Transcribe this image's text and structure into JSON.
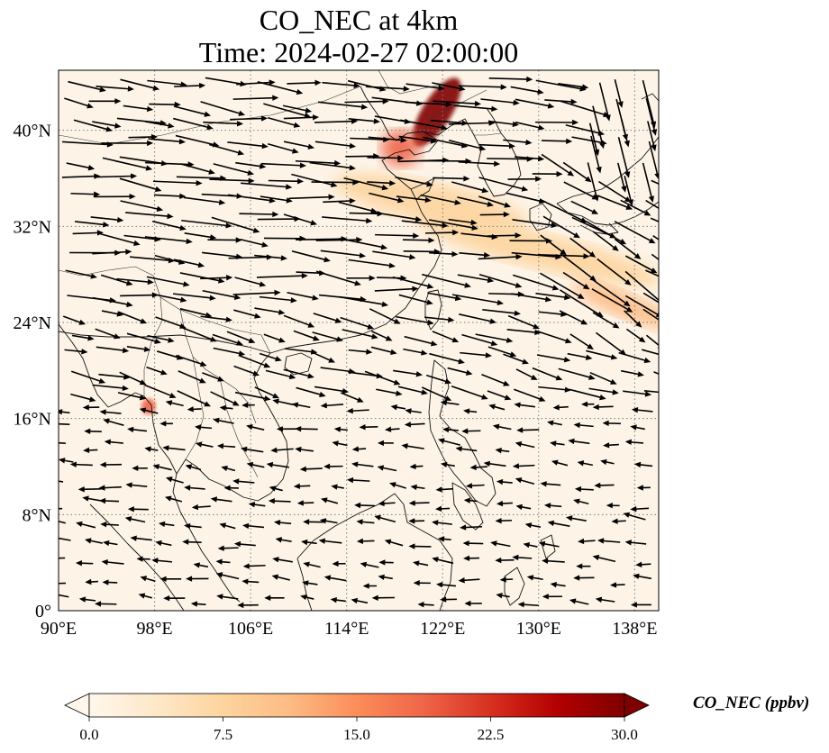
{
  "title": {
    "line1": "CO_NEC at 4km",
    "line2": "Time: 2024-02-27 02:00:00"
  },
  "map": {
    "projection": "PlateCarree",
    "lon_range": [
      90,
      140
    ],
    "lat_range": [
      0,
      45
    ],
    "x_ticks": [
      {
        "lon": 90,
        "label": "90°E"
      },
      {
        "lon": 98,
        "label": "98°E"
      },
      {
        "lon": 106,
        "label": "106°E"
      },
      {
        "lon": 114,
        "label": "114°E"
      },
      {
        "lon": 122,
        "label": "122°E"
      },
      {
        "lon": 130,
        "label": "130°E"
      },
      {
        "lon": 138,
        "label": "138°E"
      }
    ],
    "y_ticks": [
      {
        "lat": 0,
        "label": "0°"
      },
      {
        "lat": 8,
        "label": "8°N"
      },
      {
        "lat": 16,
        "label": "16°N"
      },
      {
        "lat": 24,
        "label": "24°N"
      },
      {
        "lat": 32,
        "label": "32°N"
      },
      {
        "lat": 40,
        "label": "40°N"
      }
    ],
    "gridlines": "dotted",
    "field_background": "#fdf4e7",
    "plumes": [
      {
        "name": "north-china-plume",
        "lon": 121.5,
        "lat": 41.5,
        "level": 30
      },
      {
        "name": "bohai-plume",
        "lon": 118.5,
        "lat": 38.5,
        "level": 18
      },
      {
        "name": "east-china-band",
        "lon": 121,
        "lat": 34,
        "level": 8
      },
      {
        "name": "east-china-sea-band",
        "lon": 130,
        "lat": 30,
        "level": 7
      },
      {
        "name": "japan-south-band",
        "lon": 137,
        "lat": 25.5,
        "level": 12
      },
      {
        "name": "myanmar-hotspot",
        "lon": 97.5,
        "lat": 17,
        "level": 17
      }
    ],
    "wind_regions": [
      {
        "name": "north-westerlies",
        "lat_min": 26,
        "lat_max": 45,
        "lon_min": 90,
        "lon_max": 140,
        "u": 1.0,
        "v": -0.12,
        "strength": 1.0
      },
      {
        "name": "subtropical-westerlies",
        "lat_min": 18,
        "lat_max": 26,
        "lon_min": 90,
        "lon_max": 140,
        "u": 1.0,
        "v": -0.25,
        "strength": 0.75
      },
      {
        "name": "tropical-easterlies",
        "lat_min": 0,
        "lat_max": 18,
        "lon_min": 90,
        "lon_max": 140,
        "u": -1.0,
        "v": 0.1,
        "strength": 0.45
      }
    ]
  },
  "colorbar": {
    "min": 0.0,
    "max": 30.0,
    "ticks": [
      "0.0",
      "7.5",
      "15.0",
      "22.5",
      "30.0"
    ],
    "label": "CO_NEC (ppbv)",
    "colors": [
      "#fff7ec",
      "#fee8c8",
      "#fdd49e",
      "#fdbb84",
      "#fc8d59",
      "#ef6548",
      "#d7301f",
      "#b30000",
      "#7f0000"
    ],
    "extend": "both"
  }
}
